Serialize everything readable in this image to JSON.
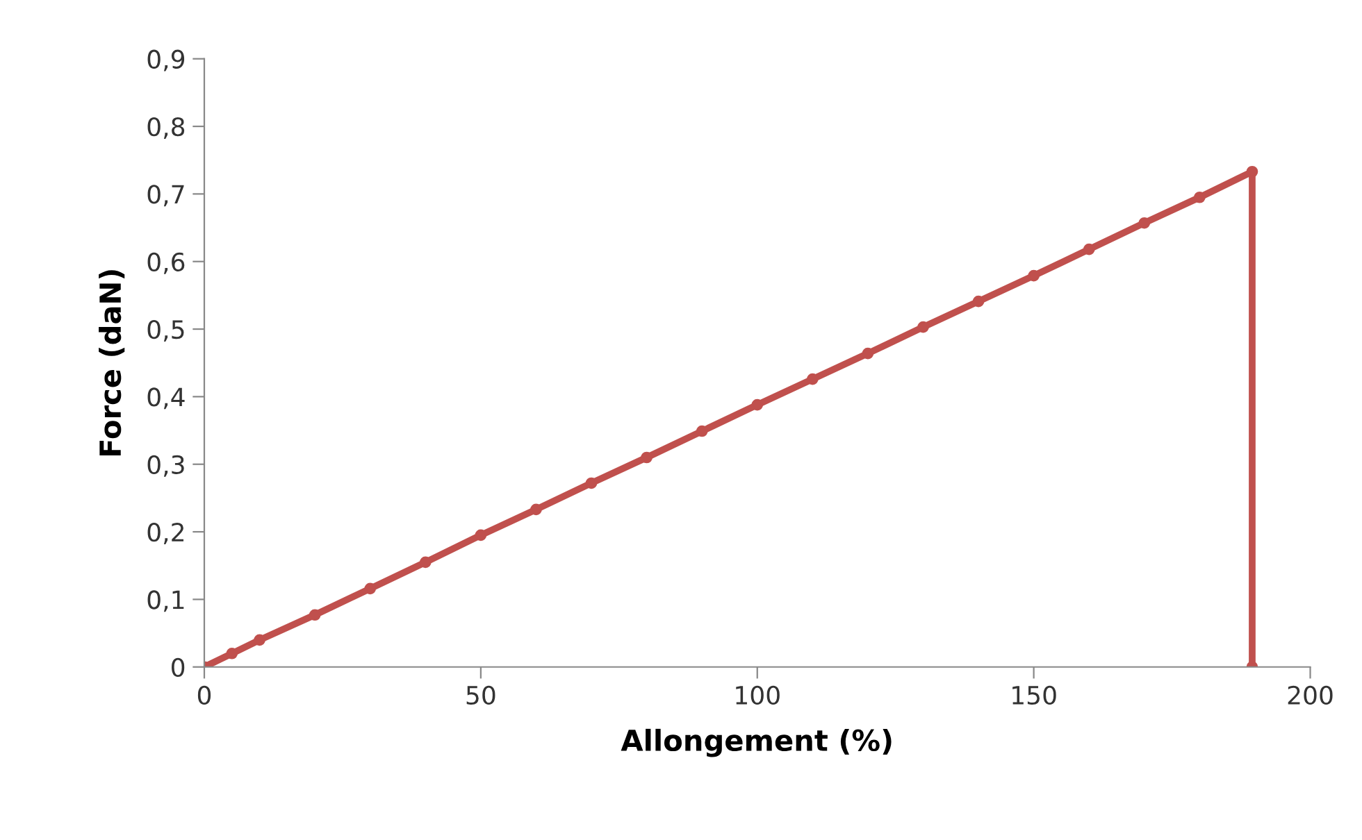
{
  "chart_data": {
    "type": "line",
    "xlabel": "Allongement (%)",
    "ylabel": "Force (daN)",
    "x": [
      0,
      5,
      10,
      20,
      30,
      40,
      50,
      60,
      70,
      80,
      90,
      100,
      110,
      120,
      130,
      140,
      150,
      160,
      170,
      180,
      189.5,
      189.5
    ],
    "series": [
      {
        "color": "#c0504d",
        "values": [
          0,
          0.02,
          0.04,
          0.077,
          0.116,
          0.155,
          0.195,
          0.233,
          0.272,
          0.31,
          0.349,
          0.388,
          0.426,
          0.464,
          0.503,
          0.541,
          0.579,
          0.618,
          0.657,
          0.695,
          0.733,
          0
        ]
      }
    ],
    "xlim": [
      0,
      200
    ],
    "xticks": [
      0,
      50,
      100,
      150,
      200
    ],
    "ylim": [
      0,
      0.9
    ],
    "yticks": [
      0,
      {
        "value": 0.1,
        "label": "0,1"
      },
      {
        "value": 0.2,
        "label": "0,2"
      },
      {
        "value": 0.3,
        "label": "0,3"
      },
      {
        "value": 0.4,
        "label": "0,4"
      },
      {
        "value": 0.5,
        "label": "0,5"
      },
      {
        "value": 0.6,
        "label": "0,6"
      },
      {
        "value": 0.7,
        "label": "0,7"
      },
      {
        "value": 0.8,
        "label": "0,8"
      },
      {
        "value": 0.9,
        "label": "0,9"
      }
    ],
    "grid": false,
    "legend": false,
    "marker": "circle",
    "line_style": "solid"
  }
}
